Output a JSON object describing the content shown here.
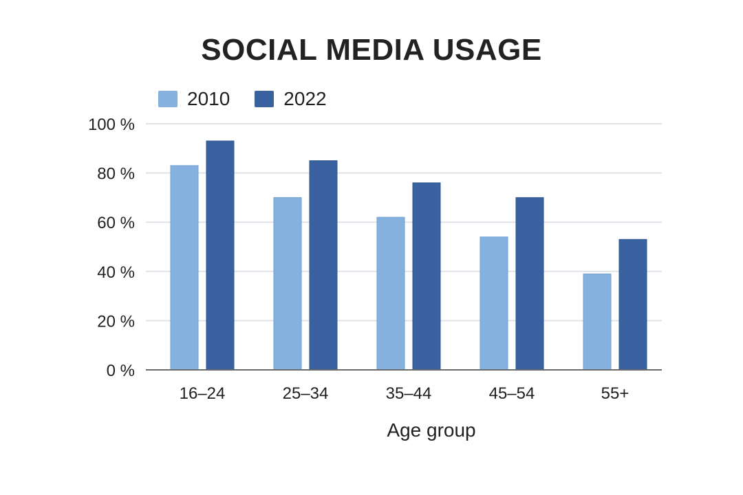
{
  "chart_data": {
    "type": "bar",
    "title": "SOCIAL MEDIA USAGE",
    "xlabel": "Age group",
    "ylabel": "",
    "categories": [
      "16–24",
      "25–34",
      "35–44",
      "45–54",
      "55+"
    ],
    "series": [
      {
        "name": "2010",
        "color": "#85b1df",
        "values": [
          83,
          70,
          62,
          54,
          39
        ]
      },
      {
        "name": "2022",
        "color": "#3a62a0",
        "values": [
          93,
          85,
          76,
          70,
          53
        ]
      }
    ],
    "ylim": [
      0,
      100
    ],
    "yticks": [
      {
        "value": 0,
        "label": "0 %"
      },
      {
        "value": 20,
        "label": "20 %"
      },
      {
        "value": 40,
        "label": "40 %"
      },
      {
        "value": 60,
        "label": "60 %"
      },
      {
        "value": 80,
        "label": "80 %"
      },
      {
        "value": 100,
        "label": "100 %"
      }
    ],
    "grid": true,
    "legend_position": "top-left"
  }
}
